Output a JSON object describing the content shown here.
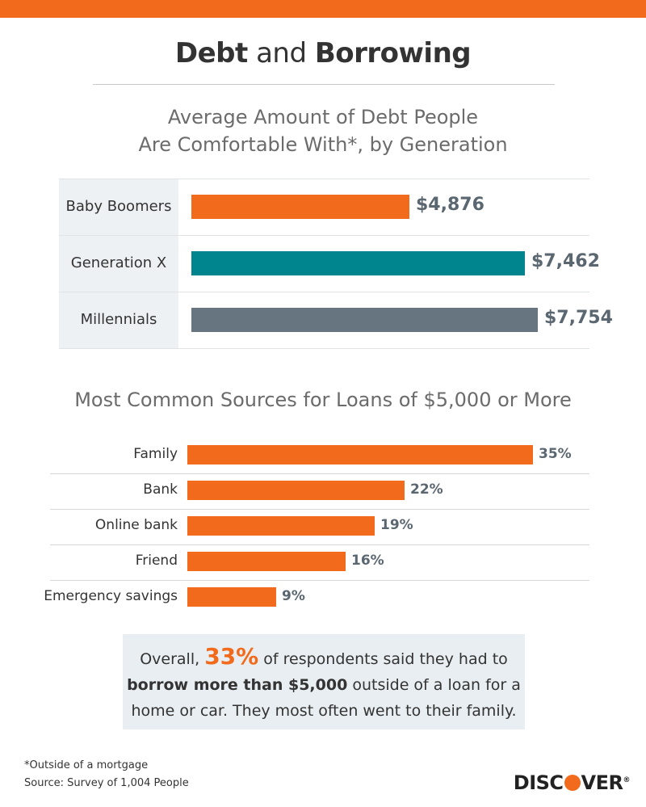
{
  "header": {
    "title_bold_1": "Debt",
    "title_middle": "and",
    "title_bold_2": "Borrowing",
    "accent_color": "#f26a1b"
  },
  "chart_data": [
    {
      "type": "bar",
      "orientation": "horizontal",
      "title": "Average Amount of Debt People Are Comfortable With*, by Generation",
      "title_lines": [
        "Average Amount of Debt People",
        "Are Comfortable With*, by Generation"
      ],
      "categories": [
        "Baby Boomers",
        "Generation X",
        "Millennials"
      ],
      "values": [
        4876,
        7462,
        7754
      ],
      "value_labels": [
        "$4,876",
        "$7,462",
        "$7,754"
      ],
      "colors": [
        "#f26a1b",
        "#00848e",
        "#667580"
      ],
      "xlim": [
        0,
        8000
      ]
    },
    {
      "type": "bar",
      "orientation": "horizontal",
      "title": "Most Common Sources for Loans of $5,000 or More",
      "categories": [
        "Family",
        "Bank",
        "Online bank",
        "Friend",
        "Emergency savings"
      ],
      "values": [
        35,
        22,
        19,
        16,
        9
      ],
      "value_labels": [
        "35%",
        "22%",
        "19%",
        "16%",
        "9%"
      ],
      "colors": [
        "#f26a1b"
      ],
      "xlim": [
        0,
        35
      ]
    }
  ],
  "callout": {
    "part1": "Overall, ",
    "highlight": "33%",
    "part2": " of respondents said they had to",
    "bold": "borrow more than $5,000",
    "part3": " outside of a loan for a",
    "part4": "home or car. They most often went to their family."
  },
  "footnotes": {
    "note": "*Outside of a mortgage",
    "source": "Source: Survey of 1,004 People"
  },
  "logo": {
    "pre": "DISC",
    "post": "VER",
    "mark": "®"
  }
}
